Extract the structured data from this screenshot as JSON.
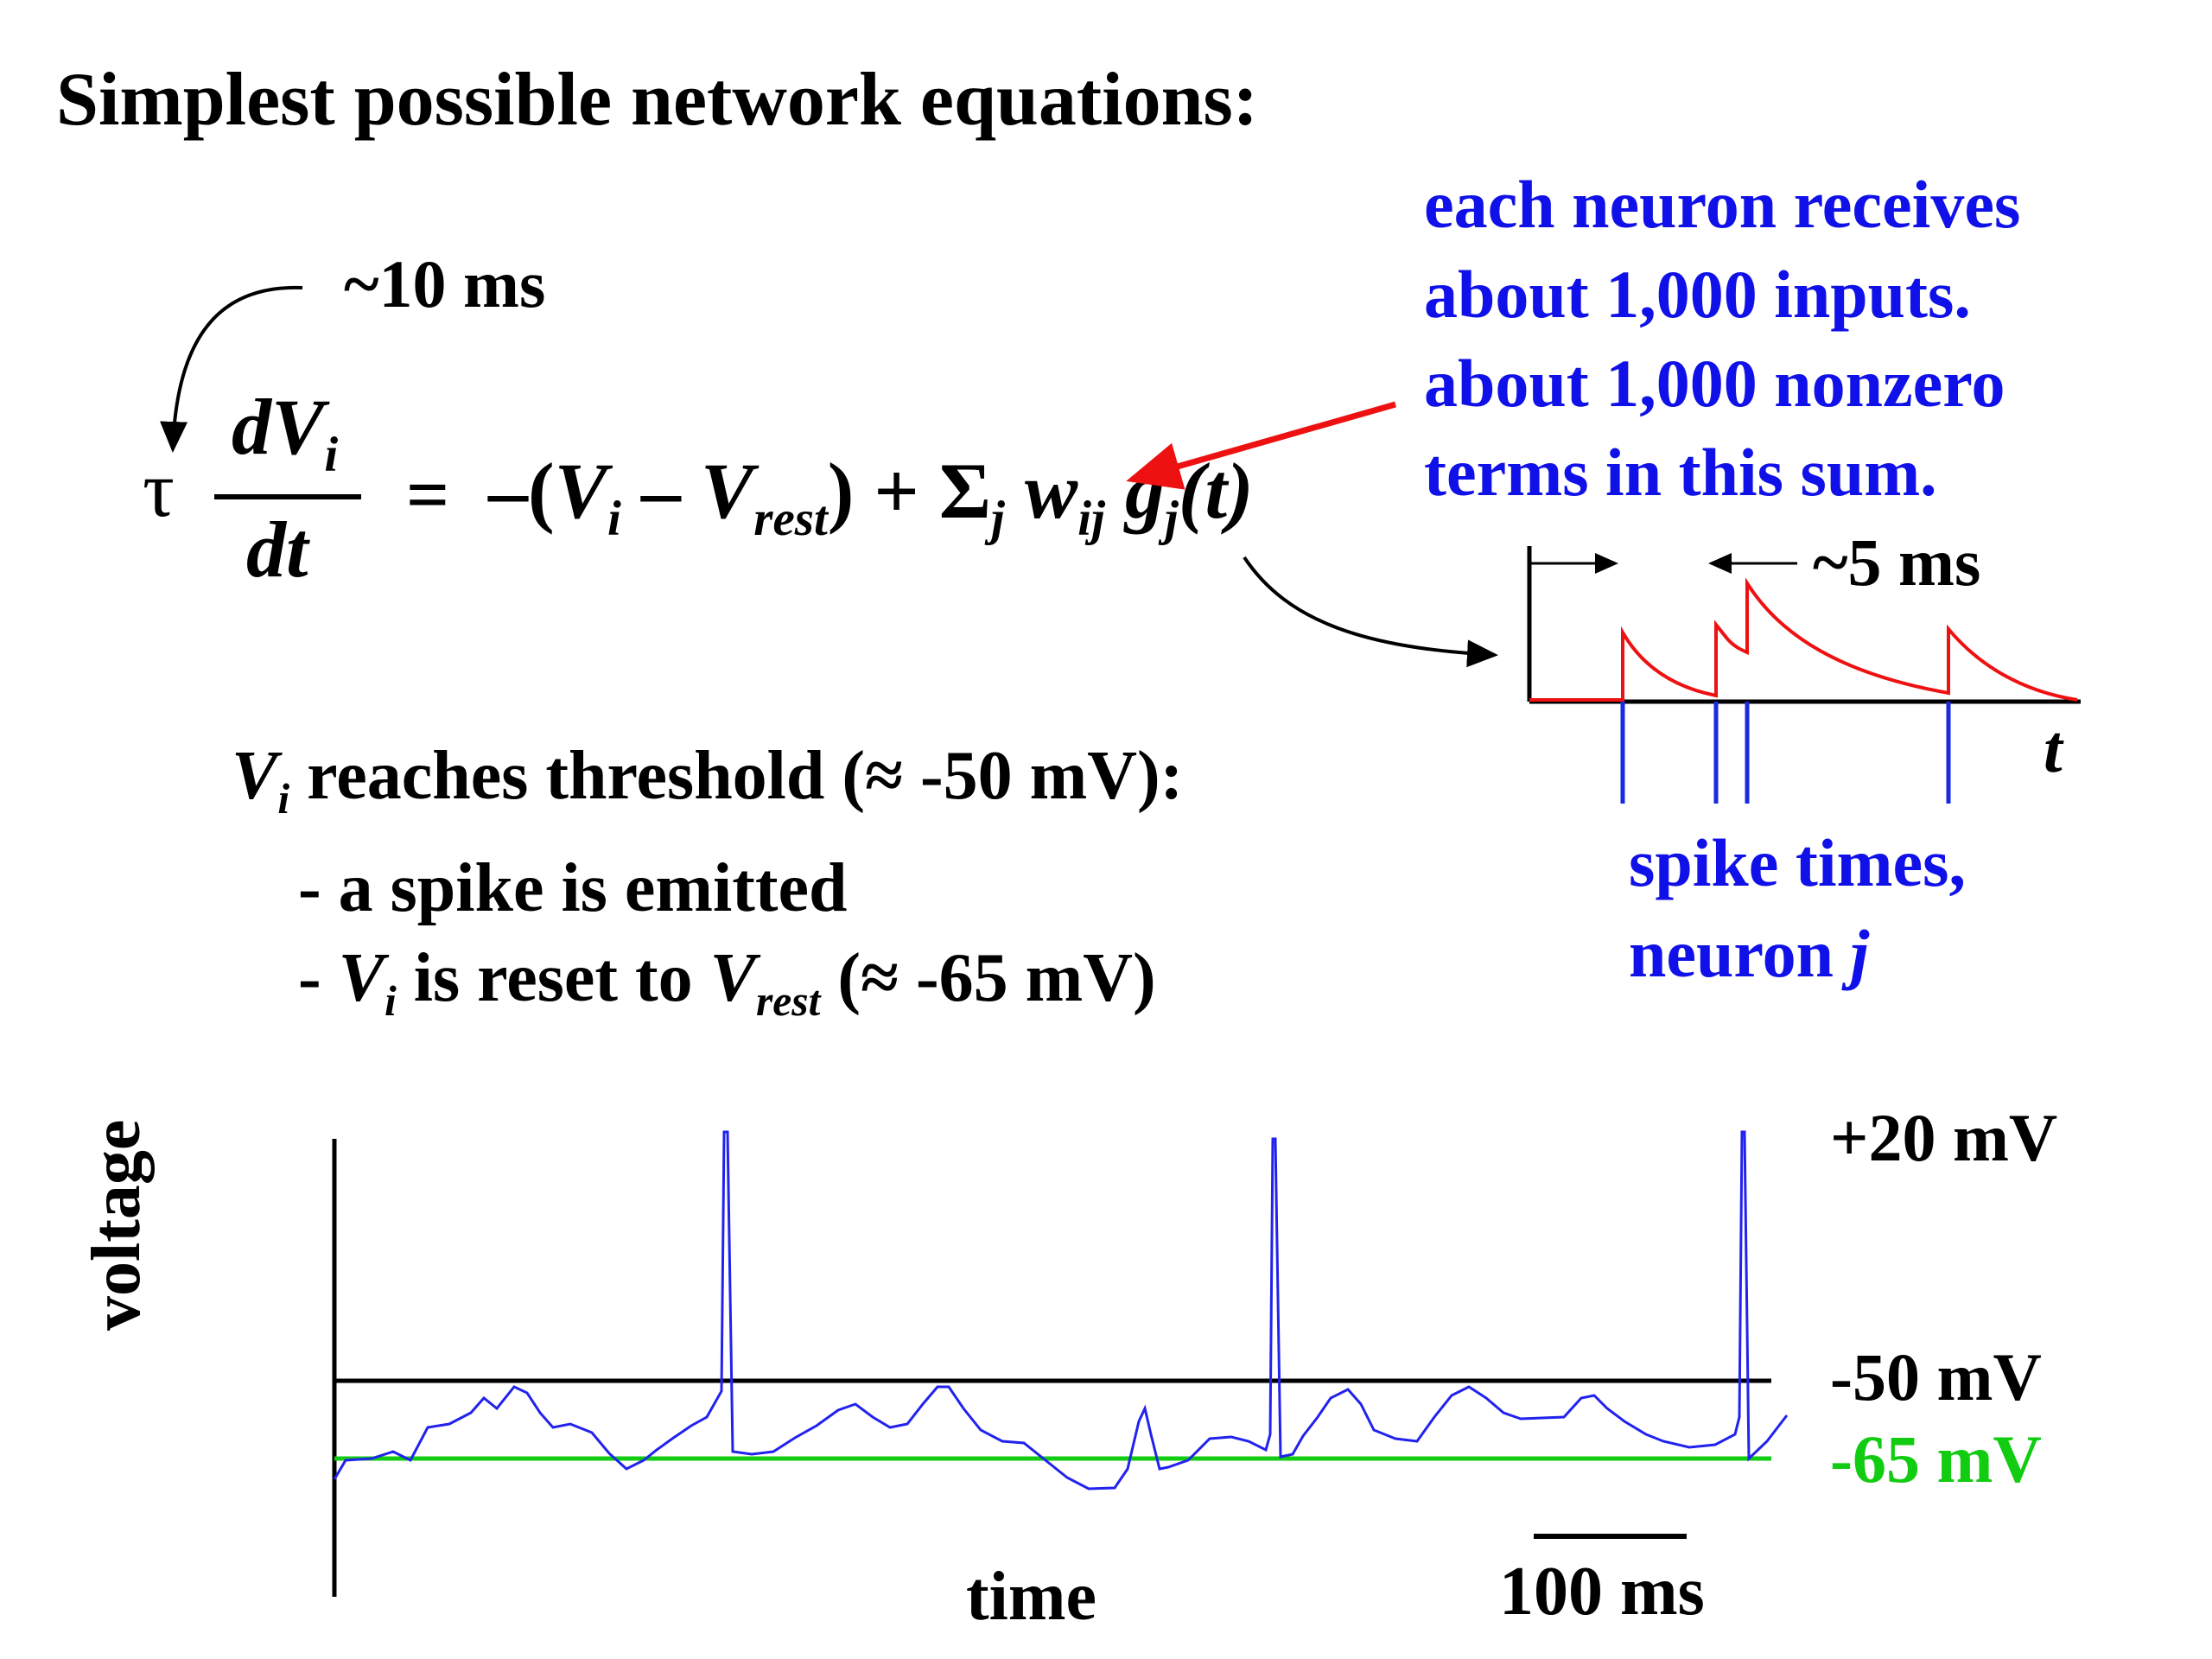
{
  "title": "Simplest possible network equations:",
  "tau_annotation": "~10 ms",
  "equation": {
    "tau": "τ",
    "dv_numerator": "dV",
    "dv_sub": "i",
    "dt_denominator": "dt",
    "equals": "=",
    "minus_paren": "–(",
    "v": "V",
    "v_sub": "i",
    "minus": "–",
    "vrest": "V",
    "vrest_sub": "rest",
    "close_plus": ") +",
    "sigma": "Σ",
    "sigma_sub": "j",
    "w": "w",
    "w_sub": "ij",
    "g": "g",
    "g_sub": "j",
    "t_arg": "(t)"
  },
  "blue_note": {
    "line1": "each neuron receives",
    "line2": "about 1,000 inputs.",
    "line3": "about 1,000 nonzero",
    "line4": "terms in this sum."
  },
  "conductance_panel": {
    "decay_label": "~5 ms",
    "t_axis_label": "t",
    "spike_label_line1": "spike times,",
    "spike_label_line2_prefix": "neuron",
    "spike_label_line2_var": "j",
    "trace_color": "#ee1111",
    "spike_color": "#1a2adf"
  },
  "threshold_text": {
    "v": "V",
    "v_sub": "i",
    "rest": " reaches threshold (≈ -50 mV):",
    "bullet1": "- a spike is emitted",
    "bullet2_prefix": "-",
    "bullet2_v": "V",
    "bullet2_v_sub": "i",
    "bullet2_mid": " is reset to",
    "bullet2_vrest": "V",
    "bullet2_vrest_sub": "rest",
    "bullet2_end": " (≈ -65 mV)"
  },
  "voltage_trace": {
    "y_label": "voltage",
    "x_label": "time",
    "scale_bar_label": "100 ms",
    "level_plus20": "+20 mV",
    "level_threshold": "-50 mV",
    "level_rest": "-65 mV",
    "trace_color": "#2222ee",
    "threshold_line_color": "#000000",
    "rest_line_color": "#11cc11"
  }
}
